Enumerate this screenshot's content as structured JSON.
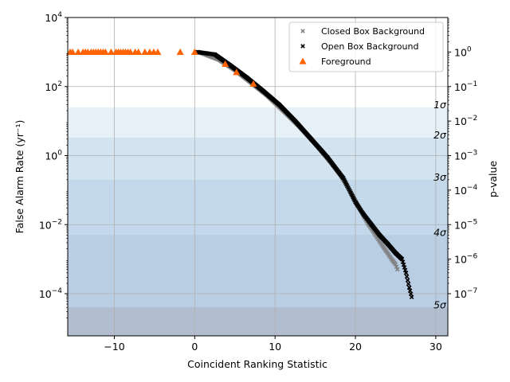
{
  "chart_data": {
    "type": "scatter",
    "xlabel": "Coincident Ranking Statistic",
    "ylabel": "False Alarm Rate (yr⁻¹)",
    "ylabel_right": "p-value",
    "xlim": [
      -15.8,
      31.5
    ],
    "ylim": [
      6e-06,
      10000
    ],
    "yscale": "log",
    "grid": true,
    "legend_position": "top-right",
    "x_ticks": [
      -10,
      0,
      10,
      20,
      30
    ],
    "x_tick_labels": [
      "−10",
      "0",
      "10",
      "20",
      "30"
    ],
    "y_ticks": [
      0.0001,
      0.01,
      1,
      100,
      10000
    ],
    "y_tick_bases": [
      "10",
      "10",
      "10",
      "10",
      "10"
    ],
    "y_tick_exponents": [
      "−4",
      "−2",
      "0",
      "2",
      "4"
    ],
    "right_axis_ticks_p": [
      1,
      0.1,
      0.01,
      0.001,
      0.0001,
      1e-05,
      1e-06,
      1e-07
    ],
    "right_axis_tick_bases": [
      "10",
      "10",
      "10",
      "10",
      "10",
      "10",
      "10",
      "10"
    ],
    "right_axis_tick_exponents": [
      "0",
      "−1",
      "−2",
      "−3",
      "−4",
      "−5",
      "−6",
      "−7"
    ],
    "p_value_mapping": "p = FAR / 1000",
    "sigma_bands": [
      {
        "label": "1σ",
        "far": 25.0,
        "color": "#e6f0f7"
      },
      {
        "label": "2σ",
        "far": 3.3,
        "color": "#d3e4f0"
      },
      {
        "label": "3σ",
        "far": 0.2,
        "color": "#c3d8ea"
      },
      {
        "label": "4σ",
        "far": 0.005,
        "color": "#b9cde3"
      },
      {
        "label": "5σ",
        "far": 4e-05,
        "color": "#b3bdd0"
      }
    ],
    "series": [
      {
        "name": "Closed Box Background",
        "marker": "x",
        "color": "#808080",
        "x": [
          0.5,
          3,
          5,
          7,
          9,
          11,
          13,
          15,
          17,
          18,
          19,
          20,
          20.5,
          21,
          21.5,
          22,
          22.5,
          23,
          23.5,
          24,
          24.5,
          25,
          25.3
        ],
        "y": [
          1000,
          600,
          300,
          130,
          55,
          20,
          7,
          2.2,
          0.6,
          0.3,
          0.13,
          0.05,
          0.03,
          0.018,
          0.011,
          0.0075,
          0.005,
          0.0033,
          0.0022,
          0.0015,
          0.001,
          0.0007,
          0.00045
        ]
      },
      {
        "name": "Open Box Background",
        "marker": "x",
        "color": "#000000",
        "x": [
          0.3,
          2.5,
          4.5,
          6.5,
          8.5,
          10.5,
          12.5,
          14.5,
          16.5,
          18.5,
          20,
          21,
          22,
          23,
          24,
          25,
          25.8,
          26.3,
          26.7,
          27
        ],
        "y": [
          1000,
          850,
          400,
          180,
          75,
          30,
          10,
          3,
          0.9,
          0.22,
          0.045,
          0.02,
          0.01,
          0.005,
          0.0028,
          0.0015,
          0.001,
          0.0004,
          0.00015,
          8e-05
        ]
      },
      {
        "name": "Foreground",
        "marker": "triangle",
        "color": "#ff6200",
        "x": [
          -15.5,
          -15.2,
          -14.5,
          -13.9,
          -13.6,
          -13.3,
          -12.9,
          -12.6,
          -12.3,
          -12.0,
          -11.7,
          -11.4,
          -11.1,
          -10.4,
          -9.8,
          -9.5,
          -9.2,
          -8.9,
          -8.6,
          -8.3,
          -8.0,
          -7.4,
          -7.0,
          -6.2,
          -5.6,
          -5.1,
          -4.6,
          -1.8,
          0.0,
          3.8,
          5.2,
          7.3
        ],
        "y": [
          1000,
          1000,
          1000,
          1000,
          1000,
          1000,
          1000,
          1000,
          1000,
          1000,
          1000,
          1000,
          1000,
          1000,
          1000,
          1000,
          1000,
          1000,
          1000,
          1000,
          1000,
          1000,
          1000,
          1000,
          1000,
          1000,
          1000,
          1000,
          1000,
          450,
          260,
          120
        ]
      }
    ]
  }
}
